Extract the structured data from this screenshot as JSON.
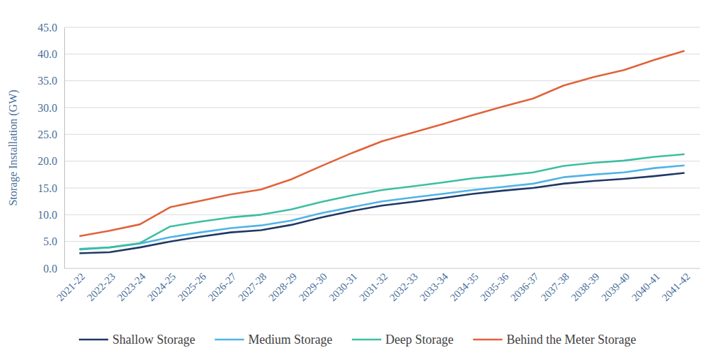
{
  "chart_data": {
    "type": "line",
    "y_label": "Storage Installation (GW)",
    "categories": [
      "2021-22",
      "2022-23",
      "2023-24",
      "2024-25",
      "2025-26",
      "2026-27",
      "2027-28",
      "2028-29",
      "2029-30",
      "2030-31",
      "2031-32",
      "2032-33",
      "2033-34",
      "2034-35",
      "2035-36",
      "2036-37",
      "2037-38",
      "2038-39",
      "2039-40",
      "2040-41",
      "2041-42"
    ],
    "series": [
      {
        "name": "Shallow Storage",
        "color": "#1f3864",
        "values": [
          2.8,
          3.0,
          3.9,
          5.0,
          5.9,
          6.7,
          7.1,
          8.1,
          9.5,
          10.7,
          11.7,
          12.4,
          13.1,
          13.9,
          14.5,
          15.0,
          15.8,
          16.3,
          16.7,
          17.2,
          17.8
        ]
      },
      {
        "name": "Medium Storage",
        "color": "#4fb3e8",
        "values": [
          3.5,
          3.9,
          4.6,
          5.8,
          6.7,
          7.5,
          8.0,
          8.9,
          10.3,
          11.4,
          12.5,
          13.2,
          13.9,
          14.6,
          15.2,
          15.8,
          17.0,
          17.5,
          17.9,
          18.7,
          19.2
        ]
      },
      {
        "name": "Deep Storage",
        "color": "#3cbf9f",
        "values": [
          3.6,
          3.9,
          4.7,
          7.8,
          8.7,
          9.5,
          10.0,
          11.0,
          12.4,
          13.6,
          14.6,
          15.3,
          16.0,
          16.8,
          17.3,
          17.9,
          19.1,
          19.7,
          20.1,
          20.8,
          21.3
        ]
      },
      {
        "name": "Behind the Meter Storage",
        "color": "#e0633a",
        "values": [
          6.0,
          7.0,
          8.2,
          11.4,
          12.6,
          13.8,
          14.7,
          16.6,
          19.1,
          21.5,
          23.7,
          25.3,
          26.9,
          28.6,
          30.2,
          31.7,
          34.1,
          35.7,
          37.0,
          38.9,
          40.6
        ]
      }
    ],
    "ylim": [
      0,
      45
    ],
    "yticks": [
      {
        "value": 0,
        "label": "0.0"
      },
      {
        "value": 5,
        "label": "5.0"
      },
      {
        "value": 10,
        "label": "10.0"
      },
      {
        "value": 15,
        "label": "15.0"
      },
      {
        "value": 20,
        "label": "20.0"
      },
      {
        "value": 25,
        "label": "25.0"
      },
      {
        "value": 30,
        "label": "30.0"
      },
      {
        "value": 35,
        "label": "35.0"
      },
      {
        "value": 40,
        "label": "40.0"
      },
      {
        "value": 45,
        "label": "45.0"
      }
    ],
    "grid": true,
    "legend": "bottom"
  }
}
